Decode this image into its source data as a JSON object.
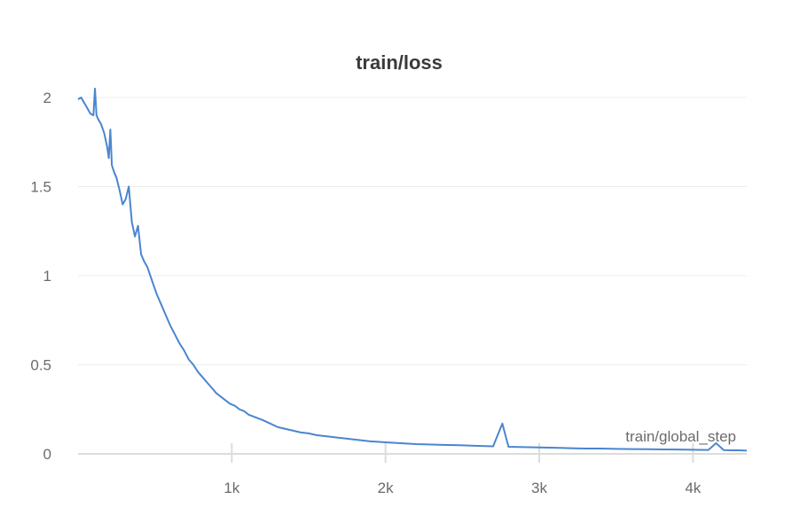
{
  "chart_data": {
    "type": "line",
    "title": "train/loss",
    "xlabel": "train/global_step",
    "ylabel": "",
    "xlim": [
      0,
      4350
    ],
    "ylim": [
      0,
      2.05
    ],
    "grid": true,
    "legend": "none",
    "x_ticks": [
      {
        "value": 1000,
        "label": "1k"
      },
      {
        "value": 2000,
        "label": "2k"
      },
      {
        "value": 3000,
        "label": "3k"
      },
      {
        "value": 4000,
        "label": "4k"
      }
    ],
    "y_ticks": [
      {
        "value": 0,
        "label": "0"
      },
      {
        "value": 0.5,
        "label": "0.5"
      },
      {
        "value": 1,
        "label": "1"
      },
      {
        "value": 1.5,
        "label": "1.5"
      },
      {
        "value": 2,
        "label": "2"
      }
    ],
    "series": [
      {
        "color": "#4a86cf",
        "x": [
          0,
          20,
          40,
          60,
          80,
          100,
          110,
          120,
          130,
          150,
          170,
          190,
          200,
          210,
          220,
          235,
          250,
          270,
          290,
          310,
          330,
          350,
          370,
          390,
          410,
          430,
          450,
          470,
          490,
          510,
          530,
          550,
          570,
          600,
          630,
          660,
          690,
          720,
          750,
          780,
          810,
          840,
          870,
          900,
          930,
          960,
          990,
          1020,
          1050,
          1080,
          1110,
          1140,
          1170,
          1200,
          1250,
          1300,
          1350,
          1400,
          1450,
          1500,
          1550,
          1600,
          1650,
          1700,
          1750,
          1800,
          1850,
          1900,
          1950,
          2000,
          2100,
          2200,
          2300,
          2400,
          2500,
          2600,
          2700,
          2760,
          2800,
          2900,
          3000,
          3100,
          3200,
          3300,
          3400,
          3500,
          3600,
          3700,
          3800,
          3900,
          4000,
          4100,
          4150,
          4200,
          4250,
          4300,
          4350
        ],
        "y": [
          1.99,
          2.0,
          1.97,
          1.94,
          1.91,
          1.9,
          2.05,
          1.9,
          1.88,
          1.85,
          1.8,
          1.72,
          1.66,
          1.82,
          1.62,
          1.58,
          1.55,
          1.48,
          1.4,
          1.43,
          1.5,
          1.3,
          1.22,
          1.28,
          1.12,
          1.08,
          1.05,
          1.0,
          0.95,
          0.9,
          0.86,
          0.82,
          0.78,
          0.72,
          0.67,
          0.62,
          0.58,
          0.53,
          0.5,
          0.46,
          0.43,
          0.4,
          0.37,
          0.34,
          0.32,
          0.3,
          0.28,
          0.27,
          0.25,
          0.24,
          0.22,
          0.21,
          0.2,
          0.19,
          0.17,
          0.15,
          0.14,
          0.13,
          0.12,
          0.115,
          0.105,
          0.1,
          0.095,
          0.09,
          0.085,
          0.08,
          0.075,
          0.07,
          0.068,
          0.065,
          0.06,
          0.055,
          0.052,
          0.05,
          0.048,
          0.045,
          0.042,
          0.17,
          0.04,
          0.038,
          0.036,
          0.034,
          0.032,
          0.03,
          0.03,
          0.028,
          0.027,
          0.026,
          0.025,
          0.024,
          0.023,
          0.022,
          0.06,
          0.021,
          0.02,
          0.02,
          0.018
        ]
      }
    ]
  }
}
